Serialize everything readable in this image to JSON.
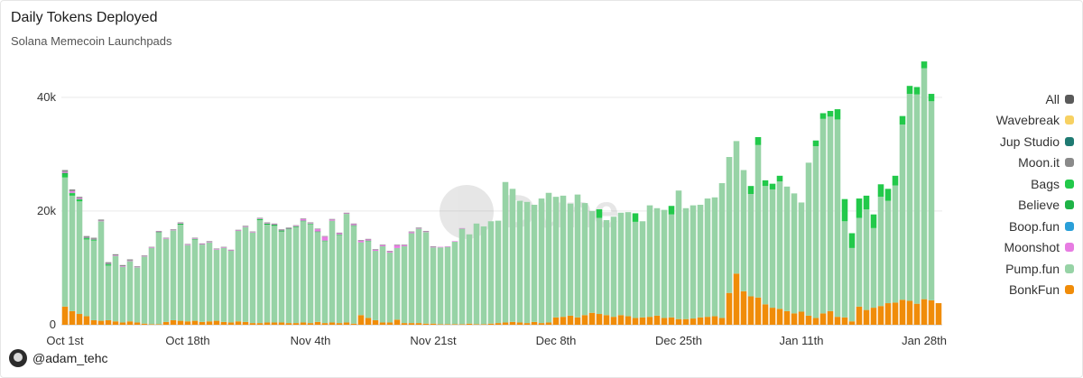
{
  "header": {
    "title": "Daily Tokens Deployed",
    "subtitle": "Solana Memecoin Launchpads"
  },
  "watermark": "Dune",
  "footer": {
    "handle": "@adam_tehc",
    "avatar_icon": "user-avatar-icon"
  },
  "colors": {
    "All": "#5a5a5a",
    "Wavebreak": "#f7d162",
    "Jup Studio": "#1f7a72",
    "Moon.it": "#8a8a8a",
    "Bags": "#22c94a",
    "Believe": "#1fb347",
    "Boop.fun": "#2a9fd8",
    "Moonshot": "#e77ce2",
    "Pump.fun": "#97d3a6",
    "BonkFun": "#f08c09"
  },
  "legend": [
    "All",
    "Wavebreak",
    "Jup Studio",
    "Moon.it",
    "Bags",
    "Believe",
    "Boop.fun",
    "Moonshot",
    "Pump.fun",
    "BonkFun"
  ],
  "chart_data": {
    "type": "bar",
    "stacked": true,
    "title": "Daily Tokens Deployed",
    "subtitle": "Solana Memecoin Launchpads",
    "x_start": "Oct 1st",
    "x_end": "Jan 28th",
    "x_tick_labels": [
      "Oct 1st",
      "Oct 18th",
      "Nov 4th",
      "Nov 21st",
      "Dec 8th",
      "Dec 25th",
      "Jan 11th",
      "Jan 28th"
    ],
    "x_tick_index": [
      0,
      17,
      34,
      51,
      68,
      85,
      102,
      119
    ],
    "y_tick_labels": [
      "0",
      "20k",
      "40k"
    ],
    "y_ticks": [
      0,
      20000,
      40000
    ],
    "ylim": [
      0,
      46000
    ],
    "grid": true,
    "legend_position": "right",
    "series": [
      {
        "name": "BonkFun",
        "values": [
          3200,
          2400,
          1900,
          1500,
          800,
          700,
          800,
          600,
          400,
          600,
          400,
          200,
          100,
          100,
          500,
          800,
          700,
          600,
          700,
          500,
          600,
          700,
          500,
          400,
          600,
          500,
          300,
          300,
          400,
          400,
          400,
          300,
          300,
          400,
          300,
          500,
          300,
          400,
          300,
          400,
          200,
          1700,
          1200,
          800,
          400,
          400,
          900,
          300,
          300,
          300,
          200,
          200,
          100,
          100,
          100,
          100,
          200,
          100,
          100,
          200,
          300,
          400,
          500,
          400,
          300,
          500,
          300,
          400,
          1300,
          1400,
          1600,
          1300,
          1700,
          2100,
          1900,
          1700,
          1400,
          1700,
          1500,
          1200,
          1300,
          1400,
          1600,
          1200,
          1300,
          1000,
          1000,
          1100,
          1300,
          1400,
          1500,
          1200,
          5600,
          9000,
          5900,
          5000,
          4800,
          3600,
          3000,
          2800,
          2400,
          2000,
          2300,
          1600,
          1200,
          2000,
          2400,
          1400,
          1300,
          600,
          3200,
          2600,
          3000,
          3300,
          3800,
          3900,
          4400,
          4200,
          3700,
          4500,
          4300,
          3800
        ]
      },
      {
        "name": "Pump.fun",
        "values": [
          22700,
          20300,
          19800,
          13500,
          14000,
          17500,
          9600,
          11500,
          9800,
          10600,
          9700,
          11800,
          13400,
          16100,
          14600,
          15800,
          16900,
          13400,
          14300,
          13600,
          13900,
          12500,
          13000,
          12600,
          15900,
          16700,
          15900,
          18100,
          17200,
          17000,
          16000,
          16500,
          16900,
          17800,
          17400,
          15800,
          14400,
          17900,
          15500,
          19100,
          17200,
          12800,
          13500,
          12200,
          13400,
          12300,
          12600,
          13500,
          15800,
          16600,
          16100,
          13400,
          13500,
          13600,
          14500,
          16800,
          15700,
          17700,
          17200,
          18000,
          18000,
          24700,
          23400,
          21400,
          21300,
          20600,
          21900,
          22800,
          21200,
          21300,
          19700,
          21600,
          19700,
          17900,
          16900,
          16700,
          17600,
          18000,
          18300,
          16900,
          16900,
          19600,
          18900,
          19000,
          18100,
          22600,
          19500,
          19900,
          19800,
          20800,
          20900,
          23700,
          23900,
          23300,
          21300,
          18000,
          26800,
          20800,
          20800,
          22400,
          21900,
          21100,
          19200,
          26900,
          30200,
          34200,
          34200,
          34700,
          16900,
          12900,
          15600,
          17700,
          14000,
          19200,
          18000,
          20600,
          30800,
          36400,
          36800,
          40600,
          35000
        ]
      },
      {
        "name": "Bags",
        "values": [
          500,
          400,
          300,
          200,
          200,
          0,
          200,
          0,
          0,
          0,
          0,
          0,
          0,
          0,
          0,
          0,
          0,
          0,
          0,
          0,
          0,
          0,
          0,
          0,
          0,
          0,
          0,
          200,
          0,
          0,
          0,
          0,
          0,
          0,
          0,
          0,
          0,
          0,
          0,
          0,
          0,
          0,
          0,
          0,
          0,
          0,
          0,
          0,
          0,
          0,
          0,
          0,
          0,
          0,
          0,
          0,
          0,
          0,
          0,
          0,
          0,
          0,
          0,
          0,
          0,
          0,
          0,
          0,
          0,
          0,
          0,
          0,
          0,
          0,
          1500,
          0,
          0,
          0,
          0,
          1500,
          0,
          0,
          0,
          0,
          1500,
          0,
          0,
          0,
          0,
          0,
          0,
          0,
          0,
          0,
          0,
          1400,
          1400,
          1000,
          1000,
          1000,
          0,
          0,
          0,
          0,
          1000,
          1000,
          1000,
          1800,
          3900,
          2600,
          3400,
          2400,
          2400,
          2200,
          2100,
          1700,
          1500,
          1400,
          1300,
          1200,
          1300
        ]
      },
      {
        "name": "Believe",
        "values": [
          300,
          100,
          100,
          100,
          0,
          0,
          100,
          0,
          0,
          0,
          0,
          0,
          0,
          100,
          0,
          0,
          200,
          0,
          100,
          0,
          0,
          0,
          0,
          0,
          0,
          0,
          0,
          0,
          200,
          200,
          200,
          100,
          100,
          100,
          100,
          100,
          100,
          0,
          100,
          0,
          100,
          0,
          100,
          0,
          0,
          0,
          0,
          0,
          0,
          0,
          0,
          0,
          0,
          0,
          0,
          0,
          0,
          0,
          0,
          0,
          0,
          0,
          0,
          0,
          0,
          0,
          0,
          0,
          0,
          0,
          0,
          0,
          0,
          0,
          0,
          0,
          0,
          0,
          0,
          0,
          0,
          0,
          0,
          0,
          0,
          0,
          0,
          0,
          0,
          0,
          0,
          0,
          0,
          0,
          0,
          0,
          0,
          0,
          0,
          0,
          0,
          0,
          0,
          0,
          0,
          0,
          0,
          0,
          0,
          0,
          0,
          0,
          0,
          0,
          0,
          0,
          0,
          0,
          0,
          0
        ]
      },
      {
        "name": "Moonshot",
        "values": [
          200,
          300,
          200,
          100,
          100,
          100,
          100,
          100,
          100,
          100,
          100,
          100,
          100,
          100,
          100,
          100,
          100,
          100,
          100,
          100,
          100,
          100,
          100,
          100,
          100,
          100,
          100,
          100,
          100,
          100,
          100,
          100,
          100,
          300,
          100,
          400,
          700,
          200,
          200,
          100,
          200,
          300,
          200,
          200,
          200,
          200,
          500,
          200,
          200,
          100,
          100,
          100,
          100,
          100,
          100,
          100,
          0,
          0,
          0,
          0,
          0,
          0,
          0,
          0,
          0,
          0,
          0,
          0,
          0,
          0,
          0,
          0,
          0,
          0,
          0,
          0,
          0,
          0,
          0,
          0,
          0,
          0,
          0,
          0,
          0,
          0,
          0,
          0,
          0,
          0,
          0,
          0,
          0,
          0,
          0,
          0,
          0,
          0,
          0,
          0,
          0,
          0,
          0,
          0,
          0,
          0,
          0,
          0,
          0,
          0,
          0,
          0,
          0,
          0,
          0,
          0,
          0,
          0,
          0,
          0,
          0
        ]
      },
      {
        "name": "Moon.it",
        "values": [
          300,
          300,
          200,
          200,
          200,
          200,
          200,
          200,
          200,
          200,
          100,
          100,
          100,
          100,
          100,
          100,
          100,
          100,
          100,
          100,
          100,
          100,
          100,
          100,
          100,
          100,
          100,
          100,
          100,
          100,
          100,
          100,
          100,
          100,
          100,
          100,
          100,
          100,
          100,
          100,
          100,
          100,
          100,
          100,
          100,
          100,
          100,
          100,
          100,
          100,
          100,
          100,
          0,
          0,
          0,
          0,
          0,
          0,
          0,
          0,
          0,
          0,
          0,
          0,
          0,
          0,
          0,
          0,
          0,
          0,
          0,
          0,
          0,
          0,
          0,
          0,
          0,
          0,
          0,
          0,
          0,
          0,
          0,
          0,
          0,
          0,
          0,
          0,
          0,
          0,
          0,
          0,
          0,
          0,
          0,
          0,
          0,
          0,
          0,
          0,
          0,
          0,
          0,
          0,
          0,
          0,
          0,
          0,
          0,
          0,
          0,
          0,
          0,
          0,
          0,
          0,
          0,
          0,
          0,
          0
        ]
      }
    ]
  }
}
